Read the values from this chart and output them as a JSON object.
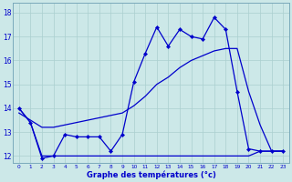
{
  "title": "Graphe des températures (°c)",
  "bg_color": "#cce8e8",
  "grid_color": "#aacfcf",
  "line_color": "#0000cc",
  "x_hours": [
    0,
    1,
    2,
    3,
    4,
    5,
    6,
    7,
    8,
    9,
    10,
    11,
    12,
    13,
    14,
    15,
    16,
    17,
    18,
    19,
    20,
    21,
    22,
    23
  ],
  "temp_actual": [
    14.0,
    13.4,
    11.9,
    12.0,
    12.9,
    12.8,
    12.8,
    12.8,
    12.2,
    12.9,
    15.1,
    16.3,
    17.4,
    16.6,
    17.3,
    17.0,
    16.9,
    17.8,
    17.3,
    14.7,
    12.3,
    12.2,
    12.2,
    12.2
  ],
  "temp_smooth_high": [
    13.8,
    13.5,
    13.2,
    13.2,
    13.3,
    13.4,
    13.5,
    13.6,
    13.7,
    13.8,
    14.1,
    14.5,
    15.0,
    15.3,
    15.7,
    16.0,
    16.2,
    16.4,
    16.5,
    16.5,
    14.7,
    13.3,
    12.2,
    12.2
  ],
  "temp_smooth_low": [
    14.0,
    13.4,
    12.0,
    12.0,
    12.0,
    12.0,
    12.0,
    12.0,
    12.0,
    12.0,
    12.0,
    12.0,
    12.0,
    12.0,
    12.0,
    12.0,
    12.0,
    12.0,
    12.0,
    12.0,
    12.0,
    12.2,
    12.2,
    12.2
  ],
  "ylim": [
    11.7,
    18.4
  ],
  "yticks": [
    12,
    13,
    14,
    15,
    16,
    17,
    18
  ],
  "xlim": [
    -0.5,
    23.5
  ]
}
